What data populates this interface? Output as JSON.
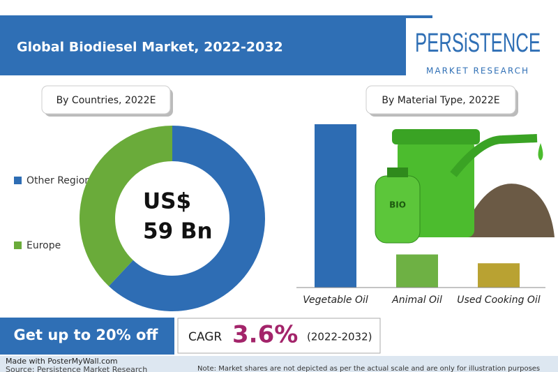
{
  "header": {
    "title": "Global Biodiesel Market, 2022-2032",
    "logo": "PERSiSTENCE",
    "logo_sub": "MARKET RESEARCH"
  },
  "chart_data": [
    {
      "type": "pie",
      "title": "By Countries, 2022E",
      "categories": [
        "Other Regions",
        "Europe"
      ],
      "values": [
        62,
        38
      ],
      "colors": [
        "#2e6db4",
        "#6aab3a"
      ],
      "donut": true,
      "center_label": [
        "US$",
        "59 Bn"
      ]
    },
    {
      "type": "bar",
      "title": "By Material Type, 2022E",
      "categories": [
        "Vegetable Oil",
        "Animal Oil",
        "Used Cooking Oil"
      ],
      "values": [
        74,
        15,
        11
      ],
      "colors": [
        "#2d6cb3",
        "#6eb144",
        "#b9a232"
      ],
      "ylim": [
        0,
        74
      ]
    }
  ],
  "promo": "Get up to 20% off",
  "cagr": {
    "label": "CAGR",
    "value": "3.6%",
    "period": "(2022-2032)"
  },
  "footer": {
    "made_with": "Made with PosterMyWall.com",
    "source": "Source: Persistence Market Research",
    "note": "Note: Market shares are not depicted as per the actual scale and are only for illustration purposes"
  }
}
